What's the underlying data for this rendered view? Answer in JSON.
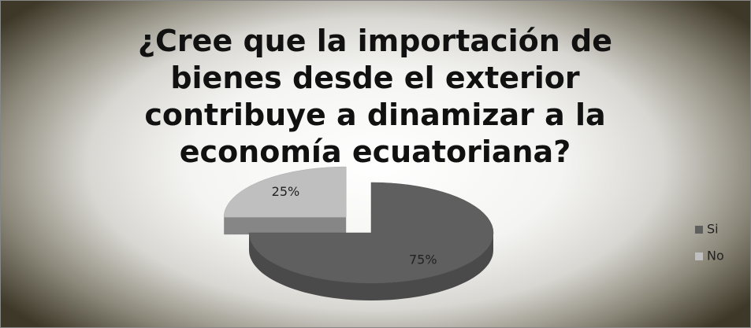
{
  "chart_data": {
    "type": "pie",
    "title": "¿Cree que la importación de bienes desde el exterior contribuye a dinamizar a la economía ecuatoriana?",
    "categories": [
      "Si",
      "No"
    ],
    "values": [
      75,
      25
    ],
    "value_labels": [
      "75%",
      "25%"
    ],
    "colors": [
      "#5f5f5f",
      "#bfbfbf"
    ],
    "legend": "right"
  }
}
